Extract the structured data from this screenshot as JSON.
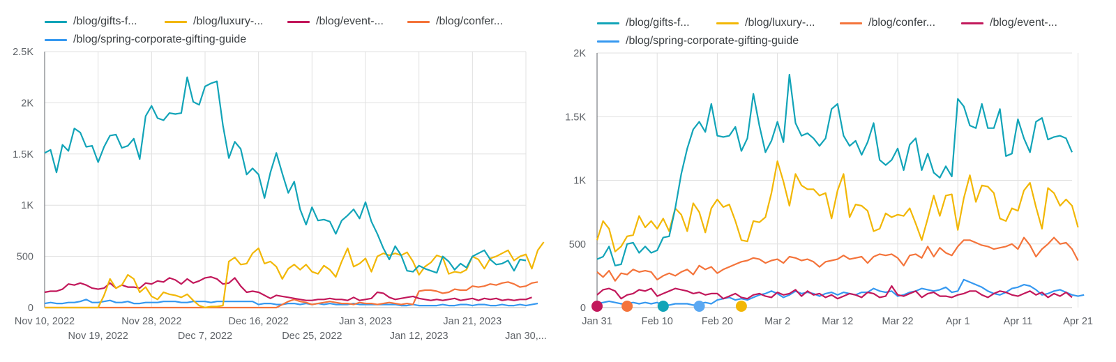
{
  "chart_data": [
    {
      "type": "line",
      "legend_position": "top-left",
      "grid": true,
      "x_ticks_row1": [
        "Nov 10, 2022",
        "Nov 28, 2022",
        "Dec 16, 2022",
        "Jan 3, 2023",
        "Jan 21, 2023"
      ],
      "x_ticks_row2": [
        "Nov 19, 2022",
        "Dec 7, 2022",
        "Dec 25, 2022",
        "Jan 12, 2023",
        "Jan 30,..."
      ],
      "y_ticks": [
        "0",
        "500",
        "1K",
        "1.5K",
        "2K",
        "2.5K"
      ],
      "ylim": [
        0,
        2500
      ],
      "x_start": "2022-11-10",
      "series": [
        {
          "name": "/blog/gifts-f...",
          "color": "#12a4b8",
          "values": [
            1510,
            1540,
            1320,
            1590,
            1530,
            1750,
            1710,
            1570,
            1580,
            1420,
            1570,
            1680,
            1690,
            1560,
            1580,
            1650,
            1450,
            1870,
            1970,
            1850,
            1830,
            1900,
            1890,
            1900,
            2250,
            2010,
            1980,
            2160,
            2190,
            2210,
            1780,
            1460,
            1620,
            1550,
            1300,
            1360,
            1300,
            1070,
            1320,
            1510,
            1310,
            1120,
            1230,
            960,
            810,
            980,
            850,
            860,
            840,
            720,
            850,
            900,
            960,
            870,
            1030,
            840,
            720,
            580,
            470,
            600,
            510,
            360,
            350,
            410,
            380,
            360,
            340,
            500,
            450,
            370,
            430,
            390,
            500,
            530,
            560,
            470,
            420,
            430,
            460,
            360,
            470,
            460
          ]
        },
        {
          "name": "/blog/luxury-...",
          "color": "#f2b705",
          "values": [
            0,
            0,
            0,
            0,
            0,
            0,
            0,
            0,
            0,
            0,
            120,
            280,
            190,
            220,
            320,
            280,
            150,
            200,
            110,
            80,
            150,
            130,
            120,
            100,
            130,
            70,
            20,
            0,
            10,
            10,
            20,
            450,
            490,
            420,
            430,
            530,
            580,
            430,
            450,
            400,
            280,
            380,
            420,
            370,
            420,
            350,
            330,
            410,
            370,
            300,
            450,
            580,
            400,
            430,
            480,
            350,
            500,
            530,
            510,
            530,
            510,
            540,
            450,
            320,
            400,
            440,
            510,
            490,
            330,
            350,
            340,
            370,
            500,
            470,
            380,
            480,
            500,
            530,
            560,
            460,
            500,
            520,
            380,
            560,
            640
          ]
        },
        {
          "name": "/blog/event-...",
          "color": "#c2185b",
          "values": [
            150,
            160,
            160,
            180,
            230,
            220,
            240,
            220,
            190,
            180,
            190,
            240,
            190,
            220,
            200,
            200,
            190,
            240,
            230,
            260,
            250,
            290,
            270,
            230,
            280,
            240,
            260,
            290,
            300,
            280,
            230,
            240,
            290,
            210,
            150,
            160,
            150,
            120,
            90,
            120,
            110,
            100,
            90,
            80,
            70,
            70,
            80,
            80,
            90,
            80,
            80,
            70,
            100,
            70,
            80,
            90,
            150,
            140,
            100,
            80,
            90,
            100,
            110,
            90,
            80,
            70,
            80,
            70,
            80,
            90,
            70,
            80,
            90,
            70,
            90,
            80,
            90,
            70,
            80,
            70,
            80,
            80,
            100
          ]
        },
        {
          "name": "/blog/confer...",
          "color": "#f4743b",
          "values": [
            0,
            0,
            0,
            0,
            0,
            0,
            0,
            0,
            0,
            0,
            0,
            0,
            0,
            0,
            0,
            0,
            0,
            0,
            0,
            0,
            0,
            0,
            0,
            0,
            0,
            0,
            0,
            0,
            0,
            0,
            0,
            0,
            0,
            0,
            0,
            0,
            0,
            0,
            0,
            0,
            30,
            60,
            80,
            60,
            50,
            30,
            40,
            50,
            60,
            50,
            40,
            40,
            30,
            50,
            40,
            40,
            30,
            40,
            50,
            40,
            30,
            40,
            30,
            160,
            170,
            170,
            160,
            140,
            150,
            180,
            170,
            170,
            210,
            200,
            210,
            230,
            220,
            240,
            250,
            230,
            200,
            210,
            240,
            250
          ]
        },
        {
          "name": "/blog/spring-corporate-gifting-guide",
          "color": "#3598f0",
          "values": [
            40,
            50,
            40,
            40,
            50,
            50,
            60,
            80,
            50,
            50,
            60,
            70,
            50,
            50,
            60,
            40,
            40,
            50,
            50,
            50,
            60,
            60,
            60,
            50,
            50,
            60,
            60,
            60,
            50,
            60,
            60,
            60,
            60,
            60,
            60,
            60,
            30,
            40,
            40,
            30,
            30,
            40,
            40,
            30,
            40,
            30,
            40,
            30,
            40,
            30,
            30,
            30,
            40,
            30,
            30,
            30,
            30,
            30,
            30,
            30,
            20,
            20,
            30,
            20,
            20,
            20,
            20,
            30,
            20,
            20,
            30,
            30,
            20,
            30,
            30,
            20,
            20,
            30,
            20,
            20,
            30,
            20,
            30,
            40
          ]
        }
      ]
    },
    {
      "type": "line",
      "legend_position": "top-left",
      "grid": true,
      "x_ticks": [
        "Jan 31",
        "Feb 10",
        "Feb 20",
        "Mar 2",
        "Mar 12",
        "Mar 22",
        "Apr 1",
        "Apr 11",
        "Apr 21"
      ],
      "y_ticks": [
        "0",
        "500",
        "1K",
        "1.5K",
        "2K"
      ],
      "ylim": [
        0,
        2000
      ],
      "x_start": "2023-01-31",
      "annotation_markers": [
        {
          "day": 0,
          "color": "#c2185b"
        },
        {
          "day": 5,
          "color": "#f4743b"
        },
        {
          "day": 11,
          "color": "#12a4b8"
        },
        {
          "day": 17,
          "color": "#5aa8f2"
        },
        {
          "day": 24,
          "color": "#f2b705"
        }
      ],
      "series": [
        {
          "name": "/blog/gifts-f...",
          "color": "#12a4b8",
          "values": [
            380,
            400,
            480,
            330,
            340,
            500,
            510,
            430,
            480,
            430,
            450,
            550,
            560,
            780,
            1050,
            1250,
            1400,
            1460,
            1380,
            1600,
            1350,
            1340,
            1350,
            1420,
            1230,
            1330,
            1680,
            1430,
            1220,
            1310,
            1460,
            1300,
            1830,
            1450,
            1350,
            1370,
            1330,
            1270,
            1330,
            1560,
            1600,
            1350,
            1270,
            1310,
            1200,
            1300,
            1450,
            1160,
            1120,
            1160,
            1250,
            1080,
            1280,
            1330,
            1080,
            1210,
            1060,
            1020,
            1110,
            1030,
            1640,
            1580,
            1430,
            1410,
            1600,
            1410,
            1410,
            1560,
            1190,
            1210,
            1480,
            1330,
            1220,
            1460,
            1490,
            1320,
            1340,
            1350,
            1330,
            1220
          ]
        },
        {
          "name": "/blog/luxury-...",
          "color": "#f2b705",
          "values": [
            530,
            680,
            620,
            440,
            480,
            560,
            570,
            720,
            630,
            680,
            620,
            700,
            600,
            780,
            730,
            600,
            820,
            750,
            590,
            780,
            850,
            790,
            810,
            680,
            530,
            520,
            680,
            670,
            710,
            900,
            1150,
            990,
            800,
            1050,
            960,
            930,
            930,
            880,
            900,
            700,
            920,
            1050,
            710,
            810,
            800,
            760,
            600,
            620,
            740,
            710,
            730,
            720,
            780,
            660,
            530,
            700,
            880,
            720,
            880,
            890,
            610,
            860,
            1040,
            830,
            960,
            950,
            900,
            700,
            680,
            780,
            760,
            920,
            980,
            790,
            620,
            940,
            900,
            800,
            850,
            800,
            630
          ]
        },
        {
          "name": "/blog/confer...",
          "color": "#f4743b",
          "values": [
            280,
            240,
            290,
            210,
            270,
            260,
            300,
            280,
            290,
            280,
            220,
            250,
            270,
            250,
            280,
            300,
            260,
            330,
            300,
            320,
            270,
            300,
            320,
            340,
            360,
            370,
            390,
            380,
            350,
            370,
            380,
            350,
            400,
            390,
            370,
            380,
            360,
            320,
            360,
            370,
            380,
            410,
            380,
            390,
            400,
            350,
            400,
            420,
            410,
            420,
            390,
            330,
            410,
            420,
            390,
            480,
            400,
            470,
            430,
            410,
            480,
            530,
            530,
            510,
            490,
            480,
            460,
            470,
            480,
            500,
            460,
            550,
            490,
            400,
            460,
            500,
            550,
            500,
            510,
            460,
            370
          ]
        },
        {
          "name": "/blog/event-...",
          "color": "#c2185b",
          "values": [
            100,
            140,
            150,
            130,
            70,
            100,
            110,
            140,
            130,
            150,
            90,
            110,
            130,
            150,
            140,
            130,
            110,
            120,
            100,
            110,
            110,
            70,
            90,
            110,
            80,
            70,
            100,
            110,
            90,
            80,
            120,
            100,
            110,
            140,
            90,
            130,
            100,
            110,
            80,
            100,
            70,
            90,
            110,
            100,
            80,
            120,
            110,
            80,
            90,
            170,
            100,
            90,
            110,
            130,
            80,
            110,
            120,
            90,
            90,
            80,
            100,
            110,
            130,
            130,
            100,
            80,
            110,
            130,
            120,
            100,
            90,
            110,
            130,
            100,
            120,
            80,
            110,
            90,
            120,
            80
          ]
        },
        {
          "name": "/blog/spring-corporate-gifting-guide",
          "color": "#3598f0",
          "values": [
            30,
            40,
            50,
            40,
            30,
            30,
            40,
            30,
            40,
            30,
            40,
            20,
            20,
            30,
            30,
            30,
            20,
            30,
            40,
            30,
            60,
            70,
            80,
            60,
            70,
            60,
            80,
            100,
            110,
            130,
            110,
            80,
            100,
            130,
            110,
            120,
            110,
            90,
            110,
            120,
            100,
            120,
            110,
            100,
            120,
            120,
            150,
            130,
            120,
            130,
            90,
            100,
            120,
            130,
            150,
            140,
            130,
            140,
            160,
            120,
            130,
            220,
            200,
            180,
            160,
            130,
            110,
            100,
            120,
            150,
            160,
            180,
            170,
            140,
            100,
            110,
            130,
            140,
            120,
            100,
            90,
            100
          ]
        }
      ]
    }
  ]
}
